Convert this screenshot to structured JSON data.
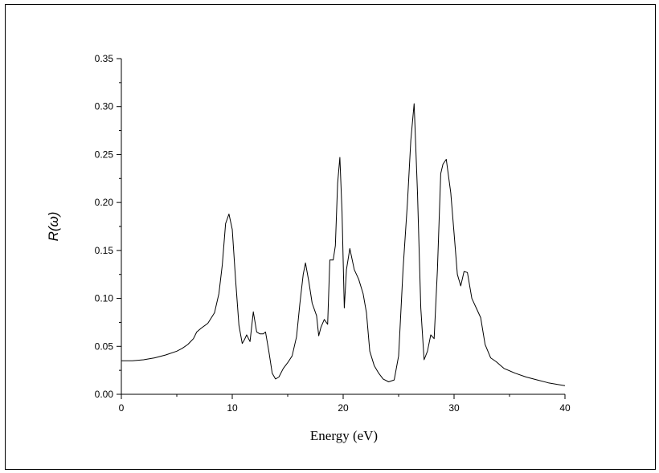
{
  "chart_data": {
    "type": "line",
    "title": "",
    "xlabel": "Energy (eV)",
    "ylabel": "R(ω)",
    "xlim": [
      0,
      40
    ],
    "ylim": [
      0,
      0.35
    ],
    "grid": false,
    "x_ticks": [
      0,
      10,
      20,
      30,
      40
    ],
    "x_tick_labels": [
      "0",
      "10",
      "20",
      "30",
      "40"
    ],
    "y_ticks": [
      0,
      0.05,
      0.1,
      0.15,
      0.2,
      0.25,
      0.3,
      0.35
    ],
    "y_tick_labels": [
      "0.00",
      "0.05",
      "0.10",
      "0.15",
      "0.20",
      "0.25",
      "0.30",
      "0.35"
    ],
    "series": [
      {
        "color": "#000000",
        "x": [
          0,
          1,
          2,
          3,
          4,
          5,
          5.5,
          6,
          6.5,
          6.8,
          7.2,
          7.8,
          8.4,
          8.8,
          9.1,
          9.4,
          9.7,
          10.0,
          10.3,
          10.6,
          10.9,
          11.1,
          11.3,
          11.6,
          11.9,
          12.2,
          12.5,
          12.8,
          13.0,
          13.3,
          13.6,
          13.9,
          14.2,
          14.6,
          15.0,
          15.4,
          15.8,
          16.1,
          16.4,
          16.6,
          16.9,
          17.2,
          17.6,
          17.8,
          18.0,
          18.3,
          18.6,
          18.8,
          19.1,
          19.3,
          19.5,
          19.7,
          19.9,
          20.1,
          20.3,
          20.6,
          21.0,
          21.4,
          21.8,
          22.1,
          22.4,
          22.8,
          23.2,
          23.6,
          24.1,
          24.6,
          25.0,
          25.4,
          25.8,
          26.1,
          26.4,
          26.7,
          27.0,
          27.3,
          27.6,
          27.9,
          28.2,
          28.5,
          28.8,
          29.0,
          29.3,
          29.7,
          30.0,
          30.3,
          30.6,
          30.9,
          31.2,
          31.6,
          32.0,
          32.4,
          32.8,
          33.3,
          33.8,
          34.5,
          35.5,
          36.5,
          37.5,
          38.5,
          39.5,
          40.0
        ],
        "y": [
          0.035,
          0.035,
          0.036,
          0.038,
          0.041,
          0.045,
          0.048,
          0.052,
          0.058,
          0.065,
          0.069,
          0.074,
          0.085,
          0.105,
          0.135,
          0.178,
          0.188,
          0.172,
          0.12,
          0.072,
          0.053,
          0.057,
          0.062,
          0.055,
          0.086,
          0.065,
          0.063,
          0.063,
          0.065,
          0.045,
          0.022,
          0.016,
          0.018,
          0.027,
          0.033,
          0.04,
          0.06,
          0.095,
          0.125,
          0.137,
          0.118,
          0.095,
          0.082,
          0.061,
          0.07,
          0.078,
          0.073,
          0.14,
          0.14,
          0.155,
          0.22,
          0.247,
          0.19,
          0.09,
          0.13,
          0.152,
          0.13,
          0.12,
          0.105,
          0.085,
          0.045,
          0.03,
          0.022,
          0.016,
          0.013,
          0.015,
          0.04,
          0.13,
          0.2,
          0.265,
          0.303,
          0.21,
          0.09,
          0.036,
          0.045,
          0.062,
          0.058,
          0.13,
          0.23,
          0.24,
          0.245,
          0.21,
          0.168,
          0.125,
          0.113,
          0.128,
          0.127,
          0.1,
          0.09,
          0.08,
          0.052,
          0.038,
          0.034,
          0.027,
          0.022,
          0.018,
          0.015,
          0.012,
          0.01,
          0.009
        ]
      }
    ]
  }
}
